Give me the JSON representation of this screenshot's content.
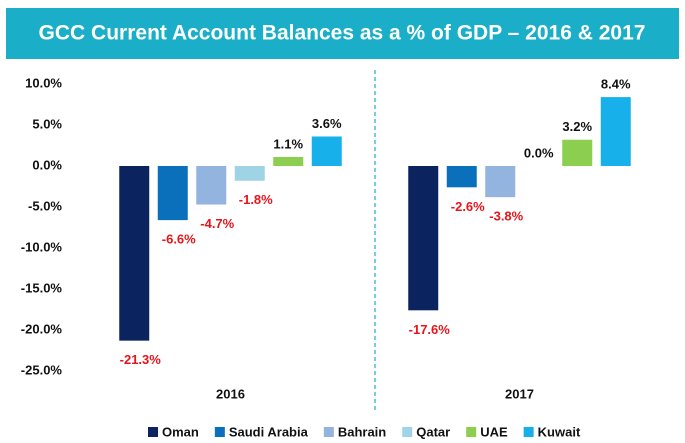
{
  "chart_data": {
    "type": "bar",
    "title": "GCC Current Account Balances as a % of GDP – 2016 & 2017",
    "categories": [
      "2016",
      "2017"
    ],
    "series": [
      {
        "name": "Oman",
        "color": "#0b2460",
        "values": [
          -21.3,
          -17.6
        ],
        "value_labels": [
          "-21.3%",
          "-17.6%"
        ]
      },
      {
        "name": "Saudi Arabia",
        "color": "#0a70bc",
        "values": [
          -6.6,
          -2.6
        ],
        "value_labels": [
          "-6.6%",
          "-2.6%"
        ]
      },
      {
        "name": "Bahrain",
        "color": "#94b4e0",
        "values": [
          -4.7,
          -3.8
        ],
        "value_labels": [
          "-4.7%",
          "-3.8%"
        ]
      },
      {
        "name": "Qatar",
        "color": "#9fd3e6",
        "values": [
          -1.8,
          0.0
        ],
        "value_labels": [
          "-1.8%",
          "0.0%"
        ]
      },
      {
        "name": "UAE",
        "color": "#8cce4f",
        "values": [
          1.1,
          3.2
        ],
        "value_labels": [
          "1.1%",
          "3.2%"
        ]
      },
      {
        "name": "Kuwait",
        "color": "#17b0ea",
        "values": [
          3.6,
          8.4
        ],
        "value_labels": [
          "3.6%",
          "8.4%"
        ]
      }
    ],
    "ylim": [
      -25,
      10
    ],
    "yticks": [
      {
        "value": 10,
        "label": "10.0%"
      },
      {
        "value": 5,
        "label": "5.0%"
      },
      {
        "value": 0,
        "label": "0.0%"
      },
      {
        "value": -5,
        "label": "-5.0%"
      },
      {
        "value": -10,
        "label": "-10.0%"
      },
      {
        "value": -15,
        "label": "-15.0%"
      },
      {
        "value": -20,
        "label": "-20.0%"
      },
      {
        "value": -25,
        "label": "-25.0%"
      }
    ],
    "grid": false
  }
}
